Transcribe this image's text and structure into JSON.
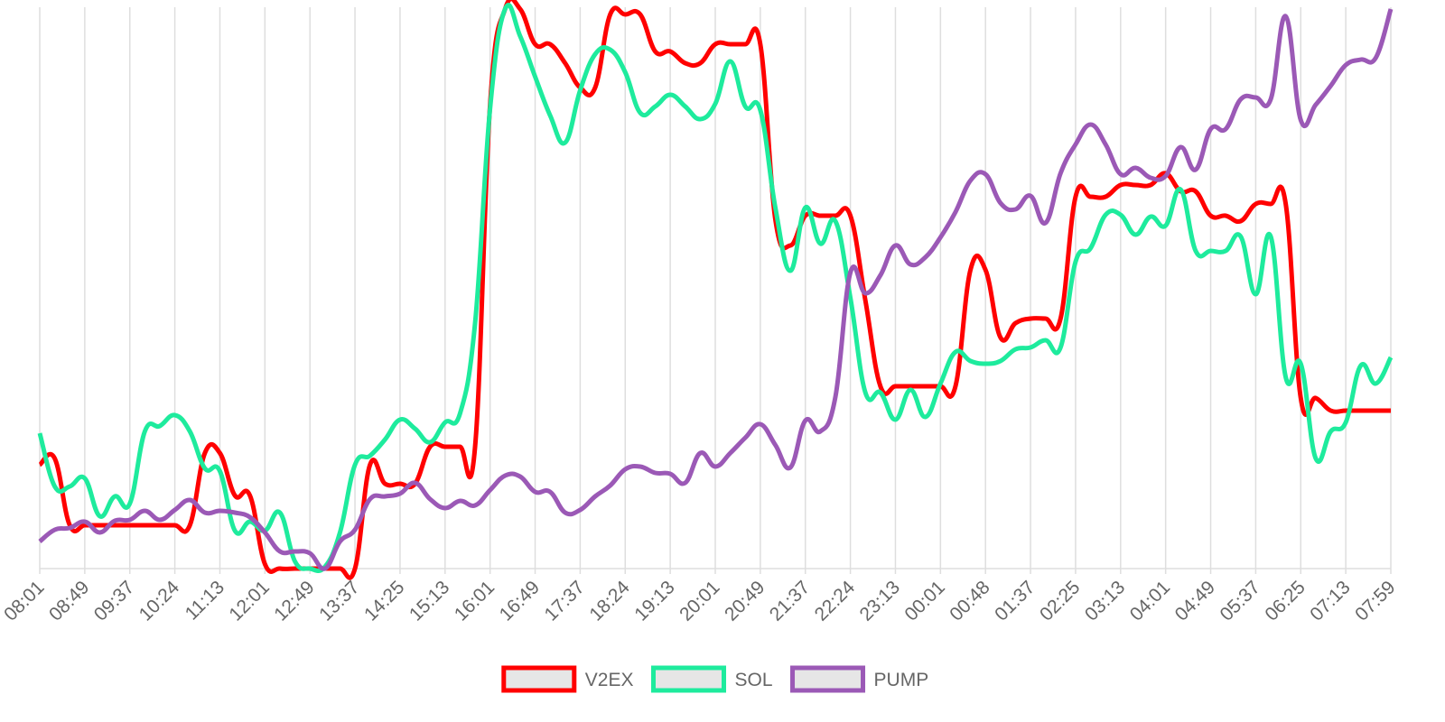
{
  "chart_data": {
    "type": "line",
    "categories": [
      "08:01",
      null,
      null,
      "08:49",
      null,
      null,
      "09:37",
      null,
      null,
      "10:24",
      null,
      null,
      "11:13",
      null,
      null,
      "12:01",
      null,
      null,
      "12:49",
      null,
      null,
      "13:37",
      null,
      null,
      "14:25",
      null,
      null,
      "15:13",
      null,
      null,
      "16:01",
      null,
      null,
      "16:49",
      null,
      null,
      "17:37",
      null,
      null,
      "18:24",
      null,
      null,
      "19:13",
      null,
      null,
      "20:01",
      null,
      null,
      "20:49",
      null,
      null,
      "21:37",
      null,
      null,
      "22:24",
      null,
      null,
      "23:13",
      null,
      null,
      "00:01",
      null,
      null,
      "00:48",
      null,
      null,
      "01:37",
      null,
      null,
      "02:25",
      null,
      null,
      "03:13",
      null,
      null,
      "04:01",
      null,
      null,
      "04:49",
      null,
      null,
      "05:37",
      null,
      null,
      "06:25",
      null,
      null,
      "07:13",
      null,
      null,
      "07:59"
    ],
    "ylim": [
      0,
      622
    ],
    "grid": true,
    "legend": "bottom",
    "series": [
      {
        "name": "V2EX",
        "color": "#ff0000",
        "values": [
          115,
          122,
          48,
          48,
          48,
          48,
          48,
          48,
          48,
          48,
          48,
          128,
          128,
          81,
          81,
          5,
          0,
          0,
          0,
          0,
          0,
          0,
          115,
          94,
          94,
          94,
          135,
          135,
          135,
          135,
          514,
          620,
          620,
          581,
          581,
          560,
          533,
          533,
          614,
          614,
          614,
          573,
          573,
          560,
          560,
          581,
          581,
          581,
          581,
          387,
          358,
          391,
          391,
          391,
          391,
          297,
          202,
          202,
          202,
          202,
          202,
          202,
          331,
          331,
          256,
          272,
          277,
          277,
          277,
          412,
          412,
          412,
          425,
          425,
          425,
          438,
          418,
          418,
          391,
          391,
          385,
          404,
          404,
          404,
          189,
          189,
          175,
          175,
          175,
          175,
          175
        ]
      },
      {
        "name": "SOL",
        "color": "#1eeb9d",
        "values": [
          150,
          91,
          91,
          100,
          58,
          80,
          72,
          152,
          158,
          170,
          152,
          111,
          108,
          42,
          52,
          42,
          62,
          8,
          0,
          2,
          40,
          115,
          125,
          143,
          165,
          155,
          140,
          162,
          172,
          272,
          510,
          620,
          590,
          545,
          502,
          472,
          530,
          570,
          575,
          550,
          505,
          512,
          525,
          512,
          498,
          515,
          562,
          512,
          508,
          400,
          330,
          400,
          360,
          385,
          300,
          195,
          195,
          165,
          198,
          168,
          205,
          240,
          230,
          227,
          230,
          243,
          245,
          253,
          245,
          340,
          355,
          392,
          392,
          370,
          390,
          380,
          420,
          352,
          352,
          352,
          368,
          304,
          368,
          212,
          227,
          122,
          152,
          162,
          225,
          205,
          234
        ]
      },
      {
        "name": "PUMP",
        "color": "#9b59b6",
        "values": [
          30,
          43,
          45,
          52,
          40,
          53,
          54,
          64,
          54,
          65,
          76,
          62,
          64,
          62,
          57,
          40,
          19,
          19,
          17,
          0,
          30,
          43,
          77,
          80,
          83,
          95,
          77,
          67,
          75,
          70,
          87,
          103,
          102,
          85,
          85,
          62,
          65,
          80,
          92,
          110,
          113,
          106,
          105,
          95,
          128,
          113,
          128,
          145,
          160,
          137,
          112,
          164,
          152,
          190,
          328,
          305,
          325,
          358,
          337,
          345,
          367,
          395,
          430,
          437,
          405,
          398,
          413,
          383,
          438,
          470,
          492,
          470,
          437,
          444,
          433,
          435,
          467,
          442,
          487,
          487,
          520,
          522,
          520,
          612,
          497,
          514,
          535,
          558,
          564,
          566,
          620
        ]
      }
    ]
  }
}
